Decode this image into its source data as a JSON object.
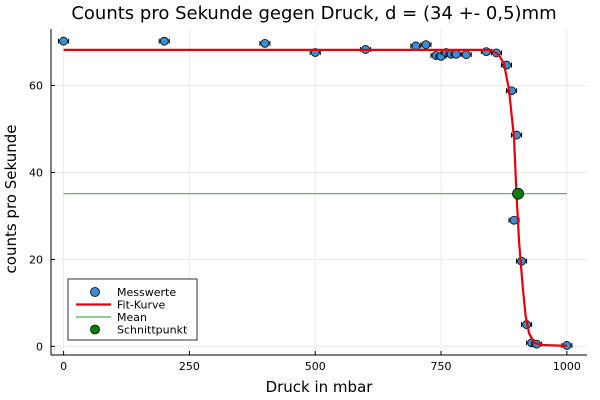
{
  "chart_data": {
    "type": "scatter",
    "title": "Counts pro Sekunde gegen Druck, d = (34 +- 0,5)mm",
    "xlabel": "Druck in mbar",
    "ylabel": "counts pro Sekunde",
    "xlim": [
      -25,
      1040
    ],
    "ylim": [
      -2,
      73
    ],
    "xticks": [
      0,
      250,
      500,
      750,
      1000
    ],
    "yticks": [
      0,
      20,
      40,
      60
    ],
    "grid": true,
    "legend_position": "bottom-left",
    "colors": {
      "messwerte": "#3a8fd4",
      "fit": "#e8000b",
      "mean": "#4caf50",
      "schnittpunkt": "#0a7d0a"
    },
    "series": [
      {
        "name": "Messwerte",
        "kind": "scatter",
        "x_err": 10,
        "y_err": 0.8,
        "points": [
          [
            0,
            70.2
          ],
          [
            200,
            70.2
          ],
          [
            400,
            69.7
          ],
          [
            500,
            67.6
          ],
          [
            600,
            68.3
          ],
          [
            700,
            69.1
          ],
          [
            720,
            69.4
          ],
          [
            740,
            66.9
          ],
          [
            750,
            66.7
          ],
          [
            760,
            67.6
          ],
          [
            770,
            67.2
          ],
          [
            780,
            67.2
          ],
          [
            800,
            67.1
          ],
          [
            840,
            67.8
          ],
          [
            860,
            67.5
          ],
          [
            880,
            64.7
          ],
          [
            890,
            58.8
          ],
          [
            900,
            48.6
          ],
          [
            895,
            29.0
          ],
          [
            910,
            19.6
          ],
          [
            920,
            5.0
          ],
          [
            930,
            0.8
          ],
          [
            940,
            0.5
          ],
          [
            1000,
            0.2
          ]
        ]
      },
      {
        "name": "Fit-Kurve",
        "kind": "line",
        "points": [
          [
            0,
            68.2
          ],
          [
            850,
            68.2
          ],
          [
            865,
            67.0
          ],
          [
            875,
            65.0
          ],
          [
            885,
            59.0
          ],
          [
            895,
            48.0
          ],
          [
            900,
            35.0
          ],
          [
            905,
            24.0
          ],
          [
            912,
            14.0
          ],
          [
            918,
            7.0
          ],
          [
            925,
            3.0
          ],
          [
            935,
            0.8
          ],
          [
            950,
            0.3
          ],
          [
            1000,
            0.1
          ]
        ]
      },
      {
        "name": "Mean",
        "kind": "line",
        "points": [
          [
            0,
            35.1
          ],
          [
            1000,
            35.1
          ]
        ]
      },
      {
        "name": "Schnittpunkt",
        "kind": "scatter",
        "points": [
          [
            903,
            35.1
          ]
        ]
      }
    ]
  }
}
